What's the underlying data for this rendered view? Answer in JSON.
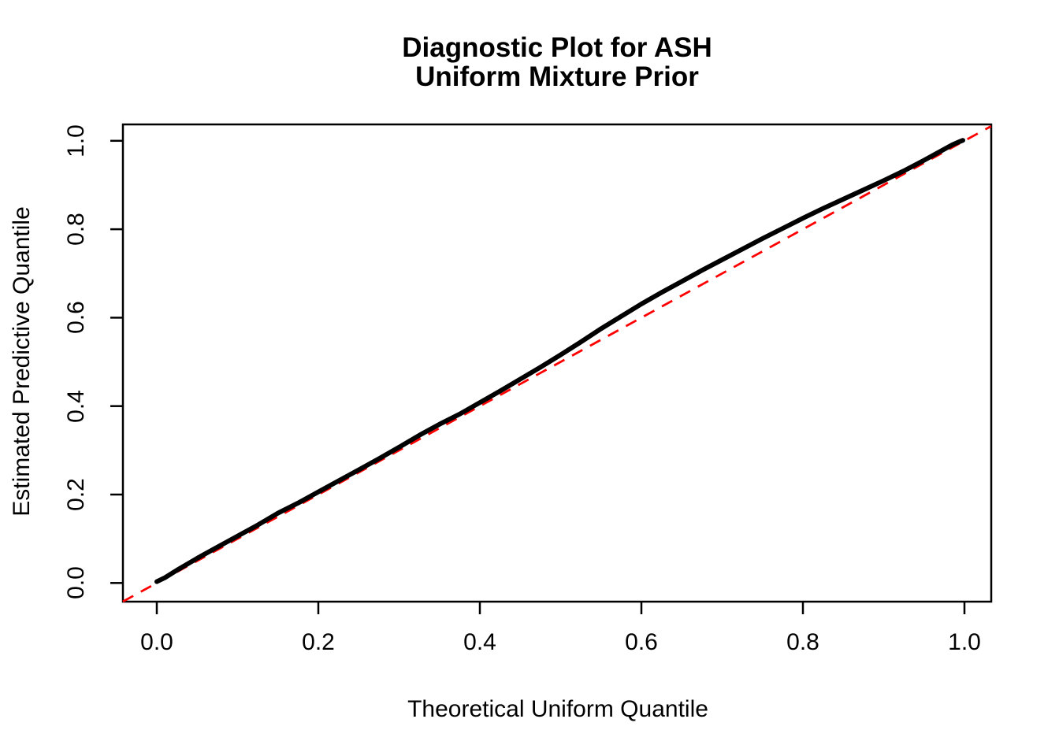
{
  "title": {
    "line1": "Diagnostic Plot for ASH",
    "line2": "Uniform Mixture Prior"
  },
  "colors": {
    "curve": "#000000",
    "identity_line": "#FF0000",
    "axis": "#000000",
    "text": "#000000",
    "background": "#FFFFFF"
  },
  "chart_data": {
    "type": "line",
    "title": "Diagnostic Plot for ASH / Uniform Mixture Prior",
    "xlabel": "Theoretical Uniform Quantile",
    "ylabel": "Estimated Predictive Quantile",
    "xlim": [
      -0.042,
      1.033
    ],
    "ylim": [
      -0.042,
      1.037
    ],
    "x_ticks": [
      0.0,
      0.2,
      0.4,
      0.6,
      0.8,
      1.0
    ],
    "y_ticks": [
      0.0,
      0.2,
      0.4,
      0.6,
      0.8,
      1.0
    ],
    "grid": false,
    "legend": false,
    "series": [
      {
        "name": "estimated_predictive_quantile",
        "style": "solid",
        "color": "#000000",
        "points": [
          [
            0.0,
            0.003
          ],
          [
            0.01,
            0.012
          ],
          [
            0.025,
            0.029
          ],
          [
            0.05,
            0.056
          ],
          [
            0.075,
            0.081
          ],
          [
            0.1,
            0.106
          ],
          [
            0.125,
            0.131
          ],
          [
            0.15,
            0.158
          ],
          [
            0.175,
            0.181
          ],
          [
            0.2,
            0.206
          ],
          [
            0.225,
            0.231
          ],
          [
            0.25,
            0.256
          ],
          [
            0.275,
            0.281
          ],
          [
            0.3,
            0.307
          ],
          [
            0.325,
            0.334
          ],
          [
            0.35,
            0.359
          ],
          [
            0.375,
            0.382
          ],
          [
            0.4,
            0.408
          ],
          [
            0.425,
            0.434
          ],
          [
            0.45,
            0.461
          ],
          [
            0.475,
            0.488
          ],
          [
            0.5,
            0.516
          ],
          [
            0.525,
            0.545
          ],
          [
            0.55,
            0.575
          ],
          [
            0.575,
            0.603
          ],
          [
            0.6,
            0.631
          ],
          [
            0.625,
            0.657
          ],
          [
            0.65,
            0.682
          ],
          [
            0.675,
            0.707
          ],
          [
            0.7,
            0.731
          ],
          [
            0.725,
            0.755
          ],
          [
            0.75,
            0.779
          ],
          [
            0.775,
            0.802
          ],
          [
            0.8,
            0.825
          ],
          [
            0.825,
            0.847
          ],
          [
            0.85,
            0.868
          ],
          [
            0.875,
            0.889
          ],
          [
            0.9,
            0.91
          ],
          [
            0.925,
            0.932
          ],
          [
            0.95,
            0.956
          ],
          [
            0.97,
            0.976
          ],
          [
            0.985,
            0.991
          ],
          [
            0.995,
            0.999
          ],
          [
            0.998,
            1.001
          ]
        ]
      },
      {
        "name": "identity_reference",
        "style": "dashed",
        "color": "#FF0000",
        "points": [
          [
            -0.042,
            -0.042
          ],
          [
            1.033,
            1.033
          ]
        ]
      }
    ]
  }
}
